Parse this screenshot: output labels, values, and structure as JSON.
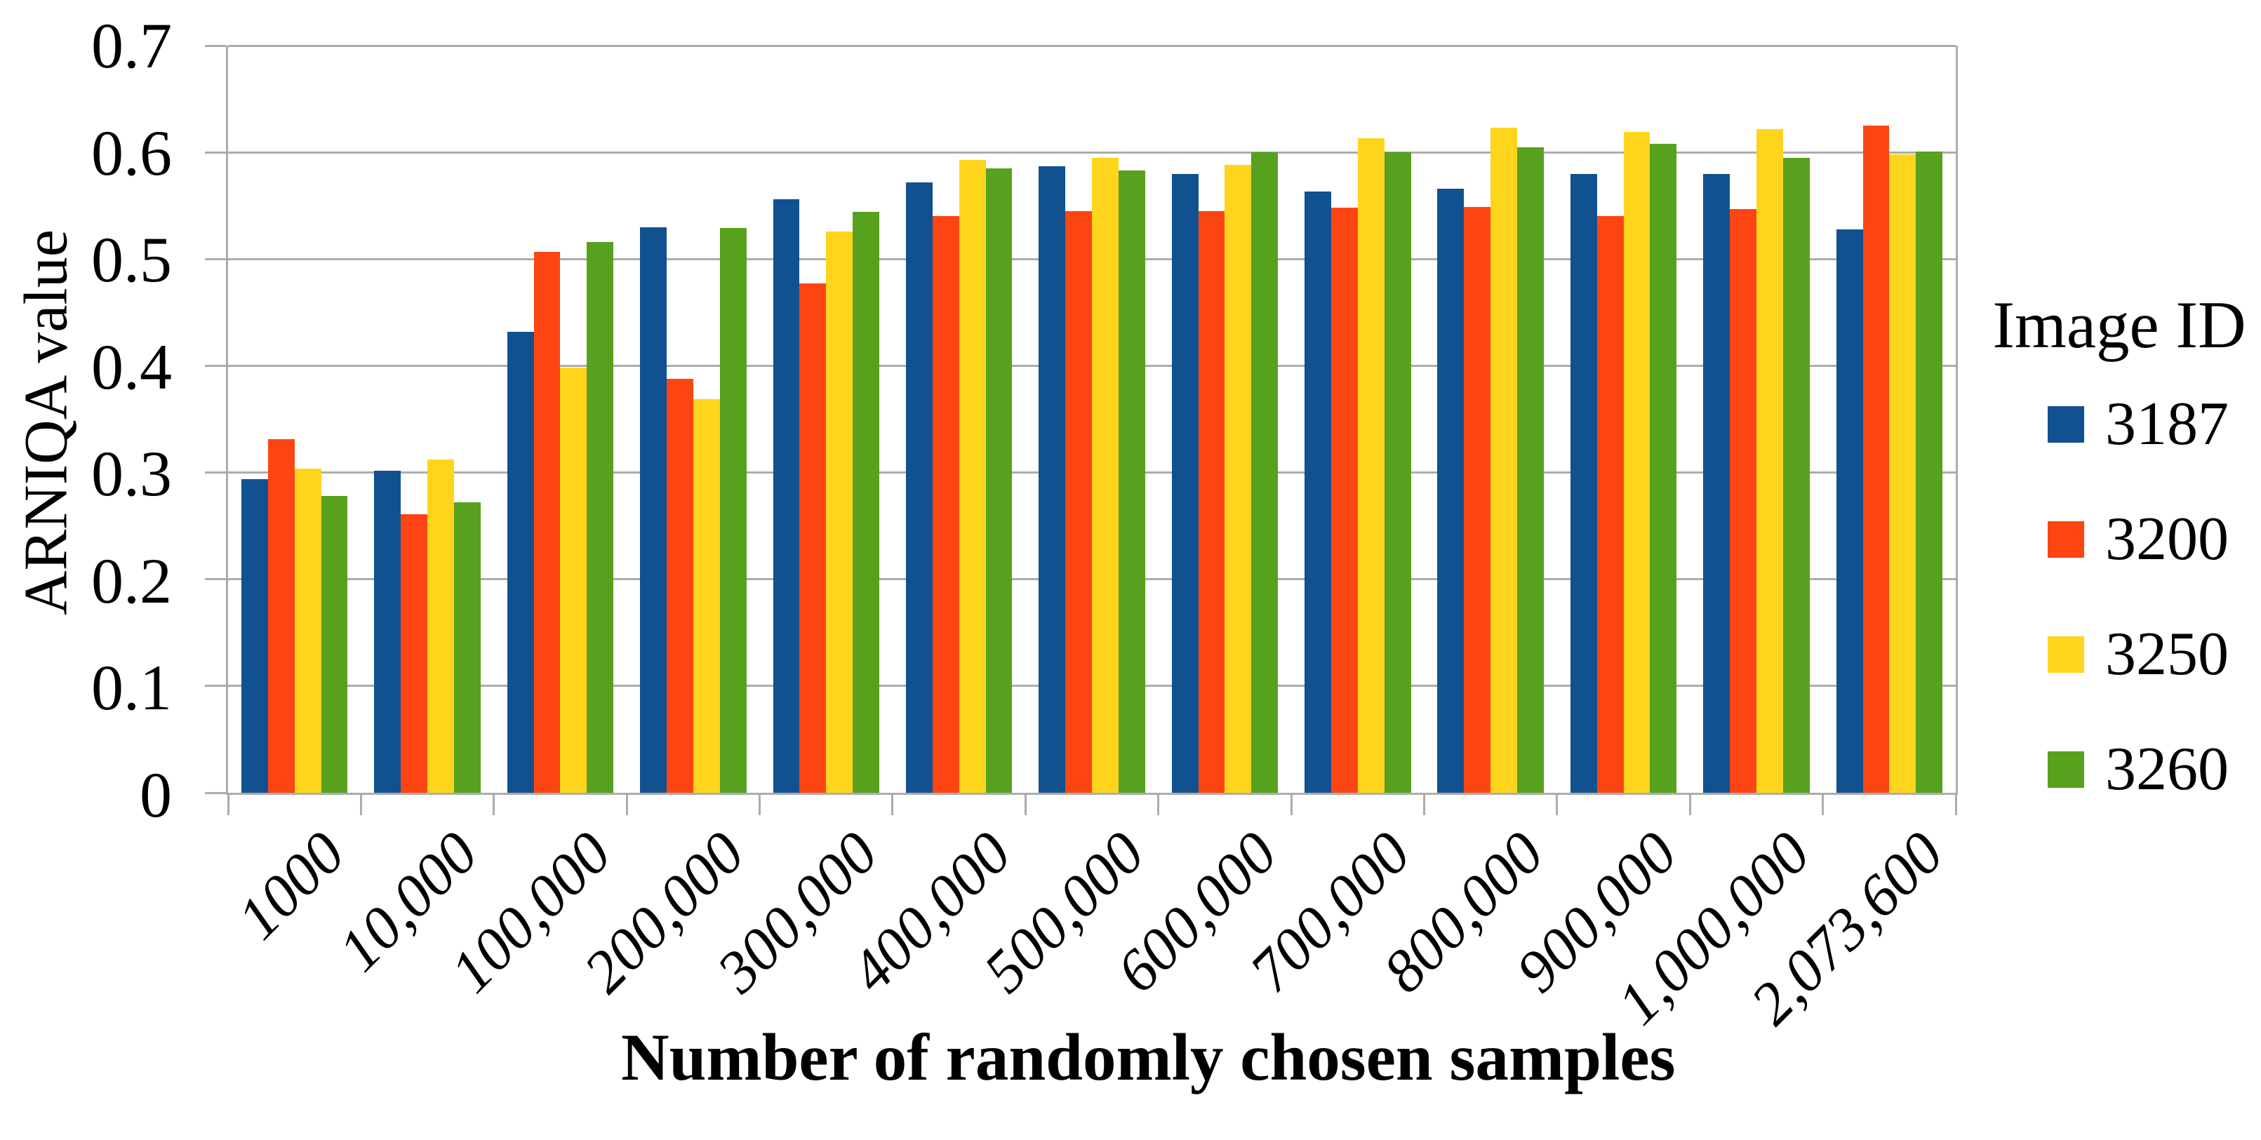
{
  "chart_data": {
    "type": "bar",
    "title": "",
    "xlabel": "Number of randomly chosen samples",
    "ylabel": "ARNIQA value",
    "legend_title": "Image ID",
    "legend_position": "right",
    "grid": true,
    "ylim": [
      0,
      0.7
    ],
    "yticks": [
      0,
      0.1,
      0.2,
      0.3,
      0.4,
      0.5,
      0.6,
      0.7
    ],
    "ytick_labels": [
      "0",
      "0.1",
      "0.2",
      "0.3",
      "0.4",
      "0.5",
      "0.6",
      "0.7"
    ],
    "categories": [
      "1000",
      "10,000",
      "100,000",
      "200,000",
      "300,000",
      "400,000",
      "500,000",
      "600,000",
      "700,000",
      "800,000",
      "900,000",
      "1,000,000",
      "2,073,600"
    ],
    "series": [
      {
        "name": "3187",
        "color": "#11518F",
        "values": [
          0.294,
          0.302,
          0.432,
          0.53,
          0.556,
          0.572,
          0.587,
          0.58,
          0.563,
          0.566,
          0.58,
          0.58,
          0.528
        ]
      },
      {
        "name": "3200",
        "color": "#FD4513",
        "values": [
          0.331,
          0.261,
          0.507,
          0.388,
          0.477,
          0.54,
          0.545,
          0.545,
          0.548,
          0.549,
          0.54,
          0.547,
          0.625
        ]
      },
      {
        "name": "3250",
        "color": "#FFD41C",
        "values": [
          0.304,
          0.312,
          0.398,
          0.369,
          0.526,
          0.593,
          0.595,
          0.588,
          0.613,
          0.623,
          0.619,
          0.622,
          0.598
        ]
      },
      {
        "name": "3260",
        "color": "#57A11E",
        "values": [
          0.278,
          0.272,
          0.516,
          0.529,
          0.544,
          0.585,
          0.583,
          0.6,
          0.6,
          0.605,
          0.608,
          0.595,
          0.601
        ]
      }
    ],
    "grid_color": "#ACACAC"
  }
}
